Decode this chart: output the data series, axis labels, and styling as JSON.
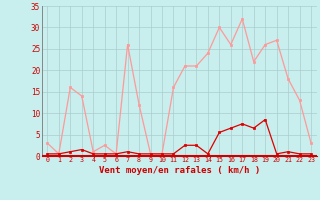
{
  "xlabel": "Vent moyen/en rafales ( km/h )",
  "background_color": "#c8eeed",
  "grid_color": "#aacccc",
  "x_values": [
    0,
    1,
    2,
    3,
    4,
    5,
    6,
    7,
    8,
    9,
    10,
    11,
    12,
    13,
    14,
    15,
    16,
    17,
    18,
    19,
    20,
    21,
    22,
    23
  ],
  "rafales": [
    3,
    0.5,
    16,
    14,
    1,
    2.5,
    0.5,
    26,
    12,
    0.5,
    0.5,
    16,
    21,
    21,
    24,
    30,
    26,
    32,
    22,
    26,
    27,
    18,
    13,
    3
  ],
  "moyen": [
    0.5,
    0.5,
    1,
    1.5,
    0.5,
    0.5,
    0.5,
    1,
    0.5,
    0.5,
    0.5,
    0.5,
    2.5,
    2.5,
    0.5,
    5.5,
    6.5,
    7.5,
    6.5,
    8.5,
    0.5,
    1,
    0.5,
    0.5
  ],
  "rafales_color": "#ff9999",
  "moyen_color": "#dd0000",
  "ylim": [
    0,
    35
  ],
  "yticks": [
    0,
    5,
    10,
    15,
    20,
    25,
    30,
    35
  ],
  "xticks": [
    0,
    1,
    2,
    3,
    4,
    5,
    6,
    7,
    8,
    9,
    10,
    11,
    12,
    13,
    14,
    15,
    16,
    17,
    18,
    19,
    20,
    21,
    22,
    23
  ]
}
